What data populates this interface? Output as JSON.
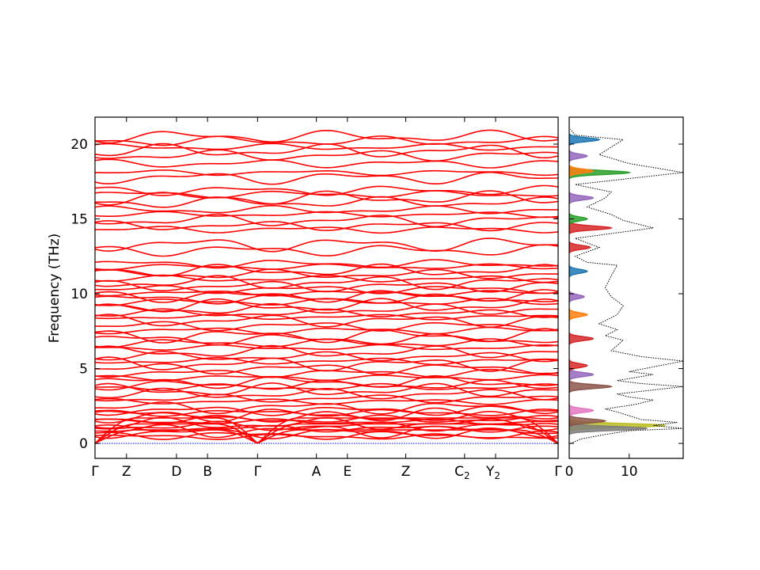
{
  "chart_data": [
    {
      "type": "line",
      "panel": "band-structure",
      "title": "",
      "xlabel": "",
      "ylabel": "Frequency (THz)",
      "ylim": [
        -1.0,
        21.8
      ],
      "yticks": [
        0,
        5,
        10,
        15,
        20
      ],
      "xlim": [
        0,
        1
      ],
      "kpoint_labels": [
        {
          "name": "Γ",
          "sub": "",
          "x": 0.0
        },
        {
          "name": "Z",
          "sub": "",
          "x": 0.068
        },
        {
          "name": "D",
          "sub": "",
          "x": 0.176
        },
        {
          "name": "B",
          "sub": "",
          "x": 0.243
        },
        {
          "name": "Γ",
          "sub": "",
          "x": 0.351
        },
        {
          "name": "A",
          "sub": "",
          "x": 0.478
        },
        {
          "name": "E",
          "sub": "",
          "x": 0.545
        },
        {
          "name": "Z",
          "sub": "",
          "x": 0.671
        },
        {
          "name": "C",
          "sub": "2",
          "x": 0.798
        },
        {
          "name": "Y",
          "sub": "2",
          "x": 0.865
        },
        {
          "name": "Γ",
          "sub": "",
          "x": 1.0
        }
      ],
      "grid": false,
      "band_color": "#ff0000",
      "zero_line_color": "#0000ff",
      "band_levels": [
        0.45,
        0.55,
        0.7,
        0.85,
        1.0,
        1.15,
        1.3,
        1.45,
        1.6,
        1.75,
        1.9,
        2.05,
        2.2,
        2.4,
        2.8,
        3.0,
        3.3,
        3.55,
        3.75,
        3.9,
        4.1,
        4.4,
        4.7,
        5.0,
        5.3,
        5.5,
        5.8,
        6.1,
        6.4,
        6.7,
        6.95,
        7.2,
        7.55,
        7.85,
        8.2,
        8.45,
        8.7,
        8.95,
        9.2,
        9.45,
        9.65,
        9.85,
        10.05,
        10.3,
        10.5,
        10.75,
        11.0,
        11.3,
        11.55,
        11.8,
        12.0,
        12.9,
        13.3,
        14.3,
        14.55,
        14.9,
        15.3,
        15.6,
        16.1,
        16.4,
        16.65,
        16.9,
        17.75,
        18.1,
        18.7,
        19.25,
        19.55,
        19.8,
        20.2,
        20.5
      ]
    },
    {
      "type": "area",
      "panel": "density-of-states",
      "title": "",
      "xlabel": "",
      "ylabel": "",
      "xlim": [
        0,
        19
      ],
      "ylim": [
        -1.0,
        21.8
      ],
      "xticks": [
        0,
        10
      ],
      "grid": false,
      "total": {
        "style": "dotted",
        "color": "#000000",
        "points": [
          [
            0.2,
            0.0
          ],
          [
            2.0,
            0.3
          ],
          [
            6.0,
            0.6
          ],
          [
            10.0,
            0.85
          ],
          [
            19.0,
            1.0
          ],
          [
            14.0,
            1.2
          ],
          [
            18.0,
            1.4
          ],
          [
            12.0,
            1.6
          ],
          [
            10.0,
            1.85
          ],
          [
            8.0,
            2.1
          ],
          [
            6.0,
            2.3
          ],
          [
            11.0,
            2.6
          ],
          [
            14.0,
            2.9
          ],
          [
            10.0,
            3.1
          ],
          [
            8.0,
            3.3
          ],
          [
            19.0,
            3.8
          ],
          [
            12.0,
            4.0
          ],
          [
            8.0,
            4.2
          ],
          [
            14.0,
            4.6
          ],
          [
            10.0,
            4.8
          ],
          [
            19.0,
            5.5
          ],
          [
            12.0,
            5.8
          ],
          [
            7.0,
            6.2
          ],
          [
            9.0,
            6.9
          ],
          [
            6.0,
            7.2
          ],
          [
            8.0,
            7.6
          ],
          [
            5.0,
            8.0
          ],
          [
            8.0,
            8.6
          ],
          [
            9.0,
            9.2
          ],
          [
            7.0,
            9.8
          ],
          [
            6.0,
            10.4
          ],
          [
            7.0,
            11.2
          ],
          [
            8.0,
            11.9
          ],
          [
            3.0,
            12.1
          ],
          [
            1.0,
            12.5
          ],
          [
            5.0,
            13.1
          ],
          [
            1.0,
            13.7
          ],
          [
            14.0,
            14.4
          ],
          [
            9.0,
            14.9
          ],
          [
            7.0,
            15.3
          ],
          [
            3.0,
            15.8
          ],
          [
            6.0,
            16.4
          ],
          [
            7.0,
            16.8
          ],
          [
            1.0,
            17.3
          ],
          [
            19.0,
            18.1
          ],
          [
            10.0,
            18.7
          ],
          [
            5.0,
            19.3
          ],
          [
            9.0,
            20.3
          ],
          [
            1.0,
            20.6
          ],
          [
            0.2,
            21.0
          ]
        ]
      },
      "projected_series_colors": [
        "#1f77b4",
        "#ff7f0e",
        "#2ca02c",
        "#d62728",
        "#9467bd",
        "#8c564b",
        "#e377c2",
        "#7f7f7f",
        "#bcbd22",
        "#17becf"
      ],
      "projected_peaks": [
        [
          1.2,
          16.0,
          "#bcbd22"
        ],
        [
          1.0,
          13.0,
          "#7f7f7f"
        ],
        [
          1.5,
          6.0,
          "#8c564b"
        ],
        [
          2.2,
          4.0,
          "#e377c2"
        ],
        [
          3.8,
          7.0,
          "#8c564b"
        ],
        [
          4.6,
          4.0,
          "#9467bd"
        ],
        [
          5.2,
          3.0,
          "#d62728"
        ],
        [
          7.0,
          4.0,
          "#d62728"
        ],
        [
          8.6,
          3.0,
          "#ff7f0e"
        ],
        [
          9.8,
          2.5,
          "#9467bd"
        ],
        [
          11.5,
          3.0,
          "#1f77b4"
        ],
        [
          13.1,
          3.5,
          "#d62728"
        ],
        [
          14.4,
          7.0,
          "#d62728"
        ],
        [
          15.0,
          3.0,
          "#2ca02c"
        ],
        [
          16.4,
          4.0,
          "#9467bd"
        ],
        [
          18.1,
          10.0,
          "#2ca02c"
        ],
        [
          18.2,
          4.0,
          "#ff7f0e"
        ],
        [
          19.2,
          3.0,
          "#9467bd"
        ],
        [
          20.3,
          5.0,
          "#1f77b4"
        ]
      ]
    }
  ]
}
